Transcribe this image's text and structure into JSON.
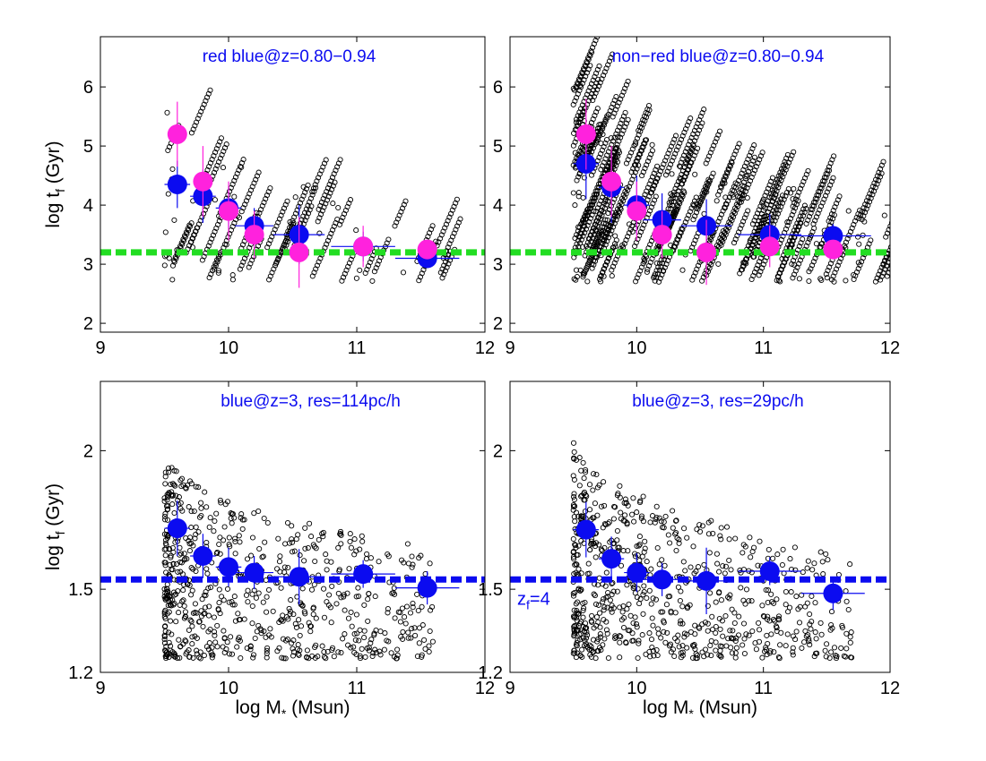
{
  "chart_data": [
    {
      "type": "scatter",
      "title": "red blue@z=0.80−0.94",
      "xlabel": "",
      "ylabel": "log t",
      "ylabel_sub": "f",
      "ylabel_unit": " (Gyr)",
      "xlim": [
        9,
        12
      ],
      "ylim": [
        1.85,
        6.85
      ],
      "xticks": [
        9,
        10,
        11,
        12
      ],
      "xtick_labels": [
        "9",
        "10",
        "11",
        "12"
      ],
      "yticks": [
        2,
        3,
        4,
        5,
        6
      ],
      "ytick_labels": [
        "2",
        "3",
        "4",
        "5",
        "6"
      ],
      "hline": {
        "y": 3.2,
        "color": "#22dd22"
      },
      "scatter_cloud": {
        "xmin": 9.5,
        "xmax": 11.7,
        "count": 500,
        "seed": 11,
        "ytop_low": 6.0,
        "ytop_high": 3.6,
        "ybot": 2.7,
        "tracks": true
      },
      "series": [
        {
          "name": "blue",
          "color": "#0b0bf0",
          "x": [
            9.6,
            9.8,
            10.0,
            10.2,
            10.55,
            11.05,
            11.55
          ],
          "y": [
            4.35,
            4.15,
            3.95,
            3.65,
            3.5,
            3.3,
            3.1
          ],
          "xerr": [
            0.1,
            0.1,
            0.1,
            0.15,
            0.2,
            0.25,
            0.25
          ],
          "yerr": [
            0.4,
            0.45,
            0.35,
            0.3,
            0.5,
            0.25,
            0.1
          ]
        },
        {
          "name": "magenta",
          "color": "#ff22dd",
          "x": [
            9.6,
            9.8,
            10.0,
            10.2,
            10.55,
            11.05,
            11.55
          ],
          "y": [
            5.2,
            4.4,
            3.9,
            3.5,
            3.2,
            3.3,
            3.25
          ],
          "xerr": [
            0.05,
            0.05,
            0.05,
            0.05,
            0.05,
            0.05,
            0.05
          ],
          "yerr": [
            0.55,
            0.6,
            0.5,
            0.4,
            0.6,
            0.35,
            0.05
          ]
        }
      ]
    },
    {
      "type": "scatter",
      "title": "non−red blue@z=0.80−0.94",
      "xlabel": "",
      "ylabel": "",
      "xlim": [
        9,
        12
      ],
      "ylim": [
        1.85,
        6.85
      ],
      "xticks": [
        9,
        10,
        11,
        12
      ],
      "xtick_labels": [
        "9",
        "10",
        "11",
        "12"
      ],
      "yticks": [
        2,
        3,
        4,
        5,
        6
      ],
      "ytick_labels": [
        "2",
        "3",
        "4",
        "5",
        "6"
      ],
      "hline": {
        "y": 3.2,
        "color": "#22dd22"
      },
      "scatter_cloud": {
        "xmin": 9.5,
        "xmax": 12.0,
        "count": 1800,
        "seed": 23,
        "ytop_low": 6.4,
        "ytop_high": 3.9,
        "ybot": 2.7,
        "tracks": true
      },
      "series": [
        {
          "name": "blue",
          "color": "#0b0bf0",
          "x": [
            9.6,
            9.8,
            10.0,
            10.2,
            10.55,
            11.05,
            11.55
          ],
          "y": [
            4.7,
            4.3,
            4.0,
            3.75,
            3.65,
            3.5,
            3.48
          ],
          "xerr": [
            0.1,
            0.1,
            0.1,
            0.15,
            0.2,
            0.25,
            0.3
          ],
          "yerr": [
            0.6,
            0.6,
            0.5,
            0.45,
            0.45,
            0.35,
            0.2
          ]
        },
        {
          "name": "magenta",
          "color": "#ff22dd",
          "x": [
            9.6,
            9.8,
            10.0,
            10.2,
            10.55,
            11.05,
            11.55
          ],
          "y": [
            5.2,
            4.4,
            3.9,
            3.5,
            3.2,
            3.3,
            3.25
          ],
          "xerr": [
            0.05,
            0.05,
            0.05,
            0.05,
            0.05,
            0.05,
            0.05
          ],
          "yerr": [
            0.6,
            0.6,
            0.5,
            0.4,
            0.55,
            0.35,
            0.05
          ]
        }
      ]
    },
    {
      "type": "scatter",
      "title": "blue@z=3, res=114pc/h",
      "xlabel": "log M",
      "xlabel_sub": "*",
      "xlabel_unit": " (Msun)",
      "ylabel": "log t",
      "ylabel_sub": "f",
      "ylabel_unit": " (Gyr)",
      "xlim": [
        9,
        12
      ],
      "ylim": [
        1.2,
        2.25
      ],
      "xticks": [
        9,
        10,
        11,
        12
      ],
      "xtick_labels": [
        "9",
        "10",
        "11",
        "12"
      ],
      "yticks": [
        1.2,
        1.5,
        2.0
      ],
      "ytick_labels": [
        "1.2",
        "1.5",
        "2"
      ],
      "hline": {
        "y": 1.535,
        "color": "#0b0bf0"
      },
      "scatter_cloud": {
        "xmin": 9.5,
        "xmax": 11.6,
        "count": 720,
        "seed": 37,
        "ytop_low": 2.0,
        "ytop_high": 1.65,
        "ybot": 1.25,
        "tracks": false
      },
      "series": [
        {
          "name": "blue",
          "color": "#0b0bf0",
          "x": [
            9.6,
            9.8,
            10.0,
            10.2,
            10.55,
            11.05,
            11.55
          ],
          "y": [
            1.72,
            1.62,
            1.58,
            1.56,
            1.545,
            1.555,
            1.505
          ],
          "xerr": [
            0.1,
            0.1,
            0.1,
            0.15,
            0.2,
            0.25,
            0.25
          ],
          "yerr": [
            0.1,
            0.08,
            0.07,
            0.06,
            0.1,
            0.05,
            0.06
          ]
        }
      ]
    },
    {
      "type": "scatter",
      "title": "blue@z=3, res=29pc/h",
      "xlabel": "log M",
      "xlabel_sub": "*",
      "xlabel_unit": " (Msun)",
      "ylabel": "",
      "xlim": [
        9,
        12
      ],
      "ylim": [
        1.2,
        2.25
      ],
      "xticks": [
        9,
        10,
        11,
        12
      ],
      "xtick_labels": [
        "9",
        "10",
        "11",
        "12"
      ],
      "yticks": [
        1.2,
        1.5,
        2.0
      ],
      "ytick_labels": [
        "1.2",
        "1.5",
        "2"
      ],
      "hline": {
        "y": 1.535,
        "color": "#0b0bf0"
      },
      "annotation": {
        "text": "z",
        "sub": "f",
        "rest": "=4"
      },
      "scatter_cloud": {
        "xmin": 9.5,
        "xmax": 11.7,
        "count": 760,
        "seed": 53,
        "ytop_low": 2.05,
        "ytop_high": 1.62,
        "ybot": 1.25,
        "tracks": false
      },
      "series": [
        {
          "name": "blue",
          "color": "#0b0bf0",
          "x": [
            9.6,
            9.8,
            10.0,
            10.2,
            10.55,
            11.05,
            11.55
          ],
          "y": [
            1.715,
            1.61,
            1.56,
            1.535,
            1.53,
            1.565,
            1.485
          ],
          "xerr": [
            0.1,
            0.1,
            0.1,
            0.15,
            0.2,
            0.25,
            0.25
          ],
          "yerr": [
            0.1,
            0.08,
            0.07,
            0.06,
            0.12,
            0.05,
            0.06
          ]
        }
      ]
    }
  ]
}
